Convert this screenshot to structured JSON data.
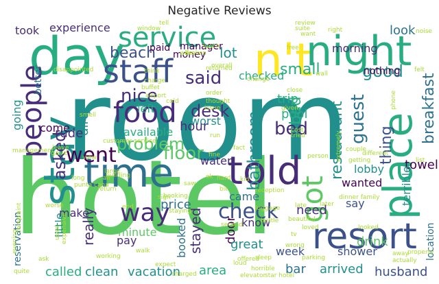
{
  "title": "Negative Reviews",
  "palette": [
    "#440154",
    "#472c7a",
    "#3b518b",
    "#2c718e",
    "#21908d",
    "#27ad81",
    "#5cc863",
    "#aadc32",
    "#fde725"
  ],
  "words": [
    "hotel",
    "room",
    "day",
    "stay",
    "n't",
    "night",
    "time",
    "told",
    "staff",
    "service",
    "resort",
    "place",
    "got",
    "food",
    "people",
    "said",
    "desk",
    "bed",
    "way",
    "check",
    "bathroom",
    "restaurant",
    "breakfast",
    "floor",
    "guest",
    "beach",
    "went",
    "nice",
    "problem",
    "small",
    "asked",
    "thing",
    "good",
    "lot",
    "manager",
    "morning",
    "look",
    "took",
    "experience",
    "money",
    "paid",
    "checked",
    "dirty",
    "left",
    "worst",
    "hour",
    "available",
    "pool",
    "trip",
    "water",
    "bad",
    "came",
    "price",
    "really",
    "make",
    "little",
    "minute",
    "pay",
    "booked",
    "stayed",
    "door",
    "know",
    "great",
    "arrived",
    "drink",
    "shower",
    "towel",
    "lobby",
    "wanted",
    "need",
    "say",
    "week",
    "area",
    "vacation",
    "clean",
    "called",
    "husband",
    "bar",
    "location",
    "terrible",
    "reservation",
    "rude",
    "come",
    "going",
    "nothing",
    "better",
    "disappointed",
    "complaint",
    "customer service",
    "walk",
    "worse",
    "elevator",
    "star hotel",
    "punta cana",
    "wife",
    "broken",
    "order",
    "given",
    "close",
    "person",
    "saw",
    "ok",
    "hard",
    "bit",
    "later",
    "luggage",
    "dinner family",
    "extremely",
    "reception",
    "sleep",
    "loud",
    "parking",
    "noise",
    "couple",
    "different",
    "getting",
    "looked",
    "late",
    "beautiful",
    "expensive",
    "working",
    "used",
    "bottle",
    "away",
    "actually",
    "wrong",
    "property",
    "gave",
    "management",
    "suite",
    "want",
    "free",
    "window",
    "tell",
    "review",
    "right",
    "building",
    "charge",
    "buffet",
    "airport",
    "think",
    "cold",
    "returned",
    "overall",
    "change",
    "wall",
    "felt",
    "phone",
    "tried",
    "cost",
    "smell",
    "run",
    "fact",
    "kid",
    "tv",
    "list",
    "air",
    "ask",
    "quite",
    "charged",
    "expect",
    "horrible",
    "lunch",
    "evening",
    "offered",
    "second",
    "return",
    "sign",
    "end",
    "large",
    "view",
    "fine",
    "leave",
    "thought",
    "issue",
    "long",
    "booking",
    "staying",
    "loved"
  ]
}
